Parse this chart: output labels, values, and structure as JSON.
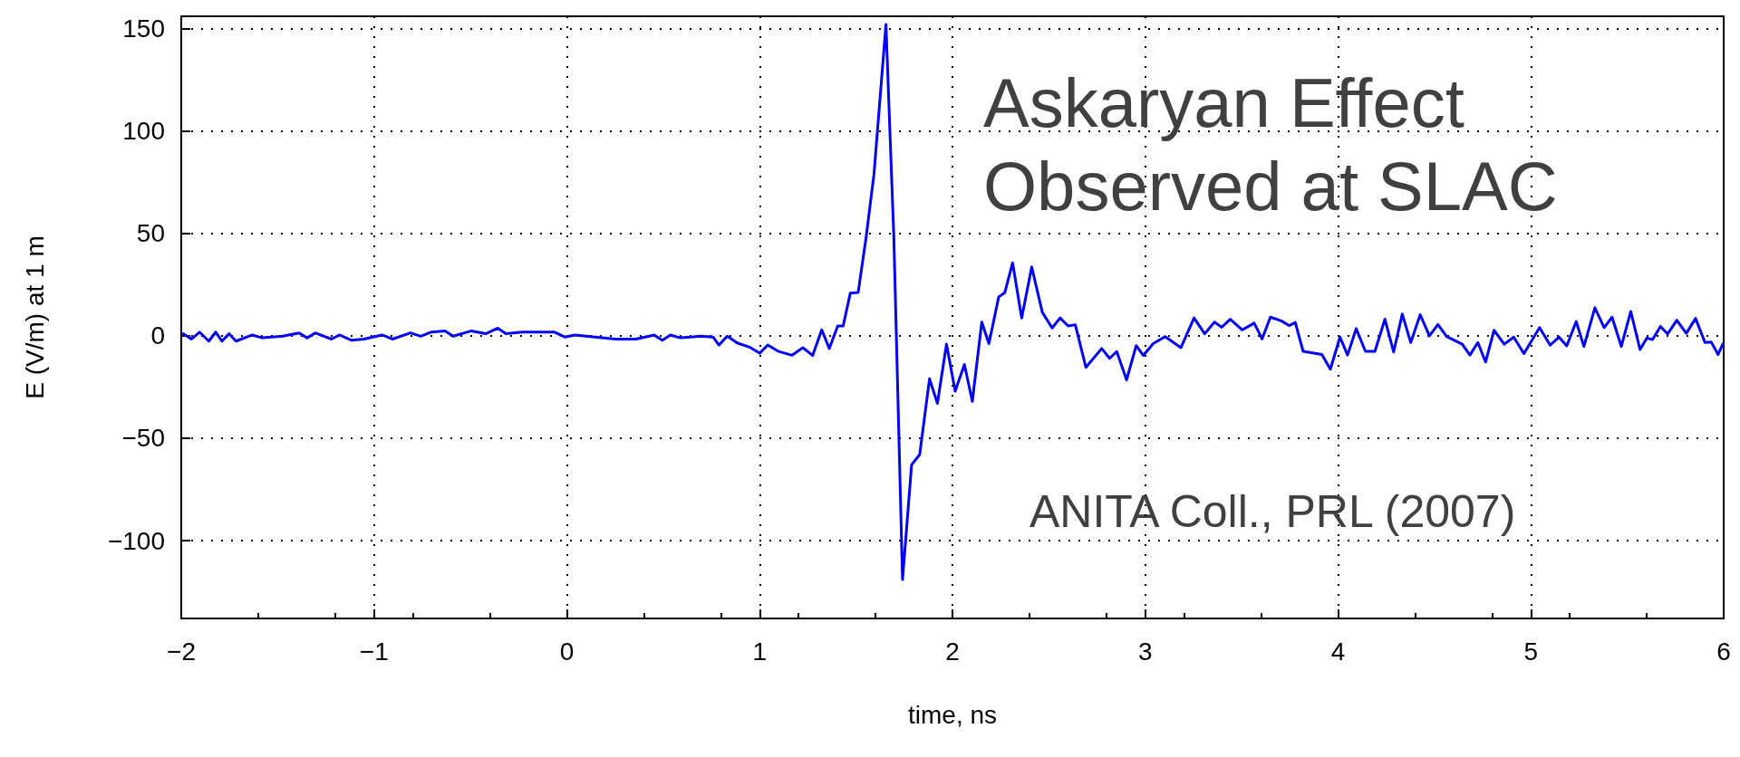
{
  "chart_data": {
    "type": "line",
    "title": "Askaryan Effect\nObserved at SLAC",
    "xlabel": "time, ns",
    "ylabel": "E (V/m) at 1 m",
    "annotations": [
      "ANITA Coll., PRL (2007)"
    ],
    "color": "#0000ff",
    "marker": "none",
    "line_style": "solid",
    "grid": true,
    "xlim": [
      -2,
      6
    ],
    "xticks": [
      -2,
      -1,
      0,
      1,
      2,
      3,
      4,
      5,
      6
    ],
    "ylim": [
      -138,
      156
    ],
    "yticks": [
      -100,
      -50,
      0,
      50,
      100,
      150
    ],
    "x": [
      -1.99,
      -1.947,
      -1.905,
      -1.857,
      -1.821,
      -1.789,
      -1.752,
      -1.716,
      -1.632,
      -1.579,
      -1.474,
      -1.389,
      -1.347,
      -1.305,
      -1.221,
      -1.179,
      -1.116,
      -1.053,
      -0.958,
      -0.905,
      -0.811,
      -0.758,
      -0.705,
      -0.632,
      -0.589,
      -0.495,
      -0.421,
      -0.358,
      -0.316,
      -0.232,
      -0.147,
      -0.063,
      -0.011,
      0.042,
      0.147,
      0.253,
      0.358,
      0.453,
      0.495,
      0.537,
      0.589,
      0.695,
      0.758,
      0.789,
      0.832,
      0.884,
      0.947,
      1.0,
      1.042,
      1.095,
      1.168,
      1.224,
      1.275,
      1.322,
      1.361,
      1.405,
      1.433,
      1.47,
      1.511,
      1.552,
      1.593,
      1.655,
      1.696,
      1.741,
      1.788,
      1.83,
      1.881,
      1.922,
      1.969,
      2.014,
      2.062,
      2.103,
      2.152,
      2.189,
      2.24,
      2.271,
      2.312,
      2.359,
      2.411,
      2.466,
      2.517,
      2.558,
      2.6,
      2.637,
      2.692,
      2.774,
      2.815,
      2.852,
      2.903,
      2.953,
      2.99,
      3.041,
      3.103,
      3.185,
      3.253,
      3.308,
      3.359,
      3.396,
      3.441,
      3.503,
      3.565,
      3.606,
      3.649,
      3.706,
      3.746,
      3.778,
      3.819,
      3.916,
      3.96,
      4.01,
      4.049,
      4.094,
      4.142,
      4.191,
      4.243,
      4.288,
      4.333,
      4.377,
      4.426,
      4.474,
      4.518,
      4.563,
      4.644,
      4.684,
      4.725,
      4.765,
      4.809,
      4.862,
      4.911,
      4.964,
      5.045,
      5.1,
      5.146,
      5.186,
      5.235,
      5.275,
      5.332,
      5.38,
      5.421,
      5.469,
      5.518,
      5.566,
      5.602,
      5.631,
      5.672,
      5.709,
      5.757,
      5.806,
      5.854,
      5.903,
      5.935,
      5.971,
      5.995
    ],
    "values": [
      1,
      -1.6,
      1.8,
      -2.6,
      1.8,
      -2.6,
      1,
      -2.6,
      0.4,
      -1,
      -0.2,
      1.4,
      -1,
      1.4,
      -1.6,
      0.4,
      -2.2,
      -1.6,
      0.4,
      -1.6,
      1.4,
      -0.2,
      1.8,
      2.4,
      -0.2,
      2.4,
      1,
      3.7,
      1,
      1.8,
      1.8,
      1.8,
      -0.6,
      0.4,
      -0.6,
      -1.6,
      -1.6,
      0.4,
      -2.2,
      0.4,
      -1,
      -0.2,
      -0.6,
      -4.5,
      -0.2,
      -3.5,
      -5.5,
      -8.5,
      -4.5,
      -7.5,
      -9.5,
      -5.8,
      -9.6,
      2.9,
      -6.2,
      4.8,
      4.8,
      20.8,
      21.2,
      48,
      79,
      152,
      48,
      -119,
      -63,
      -58,
      -21,
      -33,
      -4,
      -27,
      -14,
      -32,
      6.7,
      -3.8,
      19,
      21,
      35.6,
      8.7,
      33.6,
      11.5,
      3.8,
      8.7,
      4.8,
      5.4,
      -15.4,
      -6.2,
      -11,
      -7.7,
      -21.5,
      -4.8,
      -9.6,
      -3.8,
      -0.4,
      -5.8,
      8.7,
      1,
      6.7,
      4.2,
      8.1,
      2.9,
      6.2,
      -1.5,
      9.1,
      7.3,
      5,
      6.5,
      -7.6,
      -9.1,
      -16.3,
      -0.6,
      -9.4,
      3.5,
      -7.6,
      -7.6,
      8.1,
      -7.9,
      10.6,
      -3.3,
      10.3,
      0,
      5.5,
      -0.3,
      -4.1,
      -9.4,
      -3.3,
      -12.8,
      2.7,
      -4.1,
      -0.6,
      -8.7,
      4,
      -4.6,
      -0.6,
      -4.9,
      7,
      -5.2,
      13.7,
      4,
      9.1,
      -5.2,
      11.9,
      -6.7,
      -1.1,
      -1.8,
      4.6,
      0.9,
      7.6,
      1.2,
      8.5,
      -3.3,
      -3,
      -9.1,
      -4.1
    ]
  }
}
